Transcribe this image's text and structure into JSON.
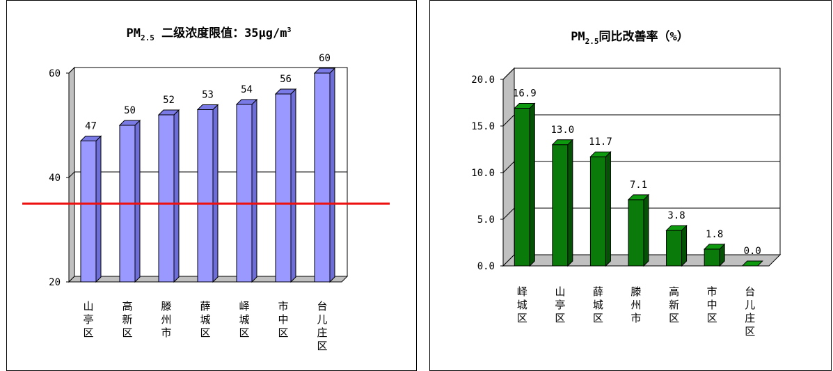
{
  "chart_data": [
    {
      "type": "bar",
      "title": {
        "main": "PM",
        "sub": "2.5",
        "rest": " 二级浓度限值：35μg/m",
        "sup": "3"
      },
      "categories": [
        [
          "山",
          "亭",
          "区"
        ],
        [
          "高",
          "新",
          "区"
        ],
        [
          "滕",
          "州",
          "市"
        ],
        [
          "薛",
          "城",
          "区"
        ],
        [
          "峄",
          "城",
          "区"
        ],
        [
          "市",
          "中",
          "区"
        ],
        [
          "台",
          "儿",
          "庄",
          "区"
        ]
      ],
      "values": [
        47,
        50,
        52,
        53,
        54,
        56,
        60
      ],
      "data_labels": [
        "47",
        "50",
        "52",
        "53",
        "54",
        "56",
        "60"
      ],
      "yticks": [
        "20",
        "40",
        "60"
      ],
      "ylim": [
        20,
        60
      ],
      "reference_line": 35,
      "colors": {
        "bar_face": "#9999FF",
        "bar_side": "#6E6ED8",
        "bar_top": "#7A7AE6",
        "reference": "#EE1111",
        "wall": "#C0C0C0"
      }
    },
    {
      "type": "bar",
      "title": {
        "main": "PM",
        "sub": "2.5",
        "rest": "同比改善率（%）"
      },
      "categories": [
        [
          "峄",
          "城",
          "区"
        ],
        [
          "山",
          "亭",
          "区"
        ],
        [
          "薛",
          "城",
          "区"
        ],
        [
          "滕",
          "州",
          "市"
        ],
        [
          "高",
          "新",
          "区"
        ],
        [
          "市",
          "中",
          "区"
        ],
        [
          "台",
          "儿",
          "庄",
          "区"
        ]
      ],
      "values": [
        16.9,
        13.0,
        11.7,
        7.1,
        3.8,
        1.8,
        0.0
      ],
      "data_labels": [
        "16.9",
        "13.0",
        "11.7",
        "7.1",
        "3.8",
        "1.8",
        "0.0"
      ],
      "yticks": [
        "0.0",
        "5.0",
        "10.0",
        "15.0",
        "20.0"
      ],
      "ylim": [
        0,
        20
      ],
      "colors": {
        "bar_face": "#0A7A0A",
        "bar_side": "#045204",
        "bar_top": "#0E9A0E",
        "wall": "#C0C0C0"
      }
    }
  ]
}
